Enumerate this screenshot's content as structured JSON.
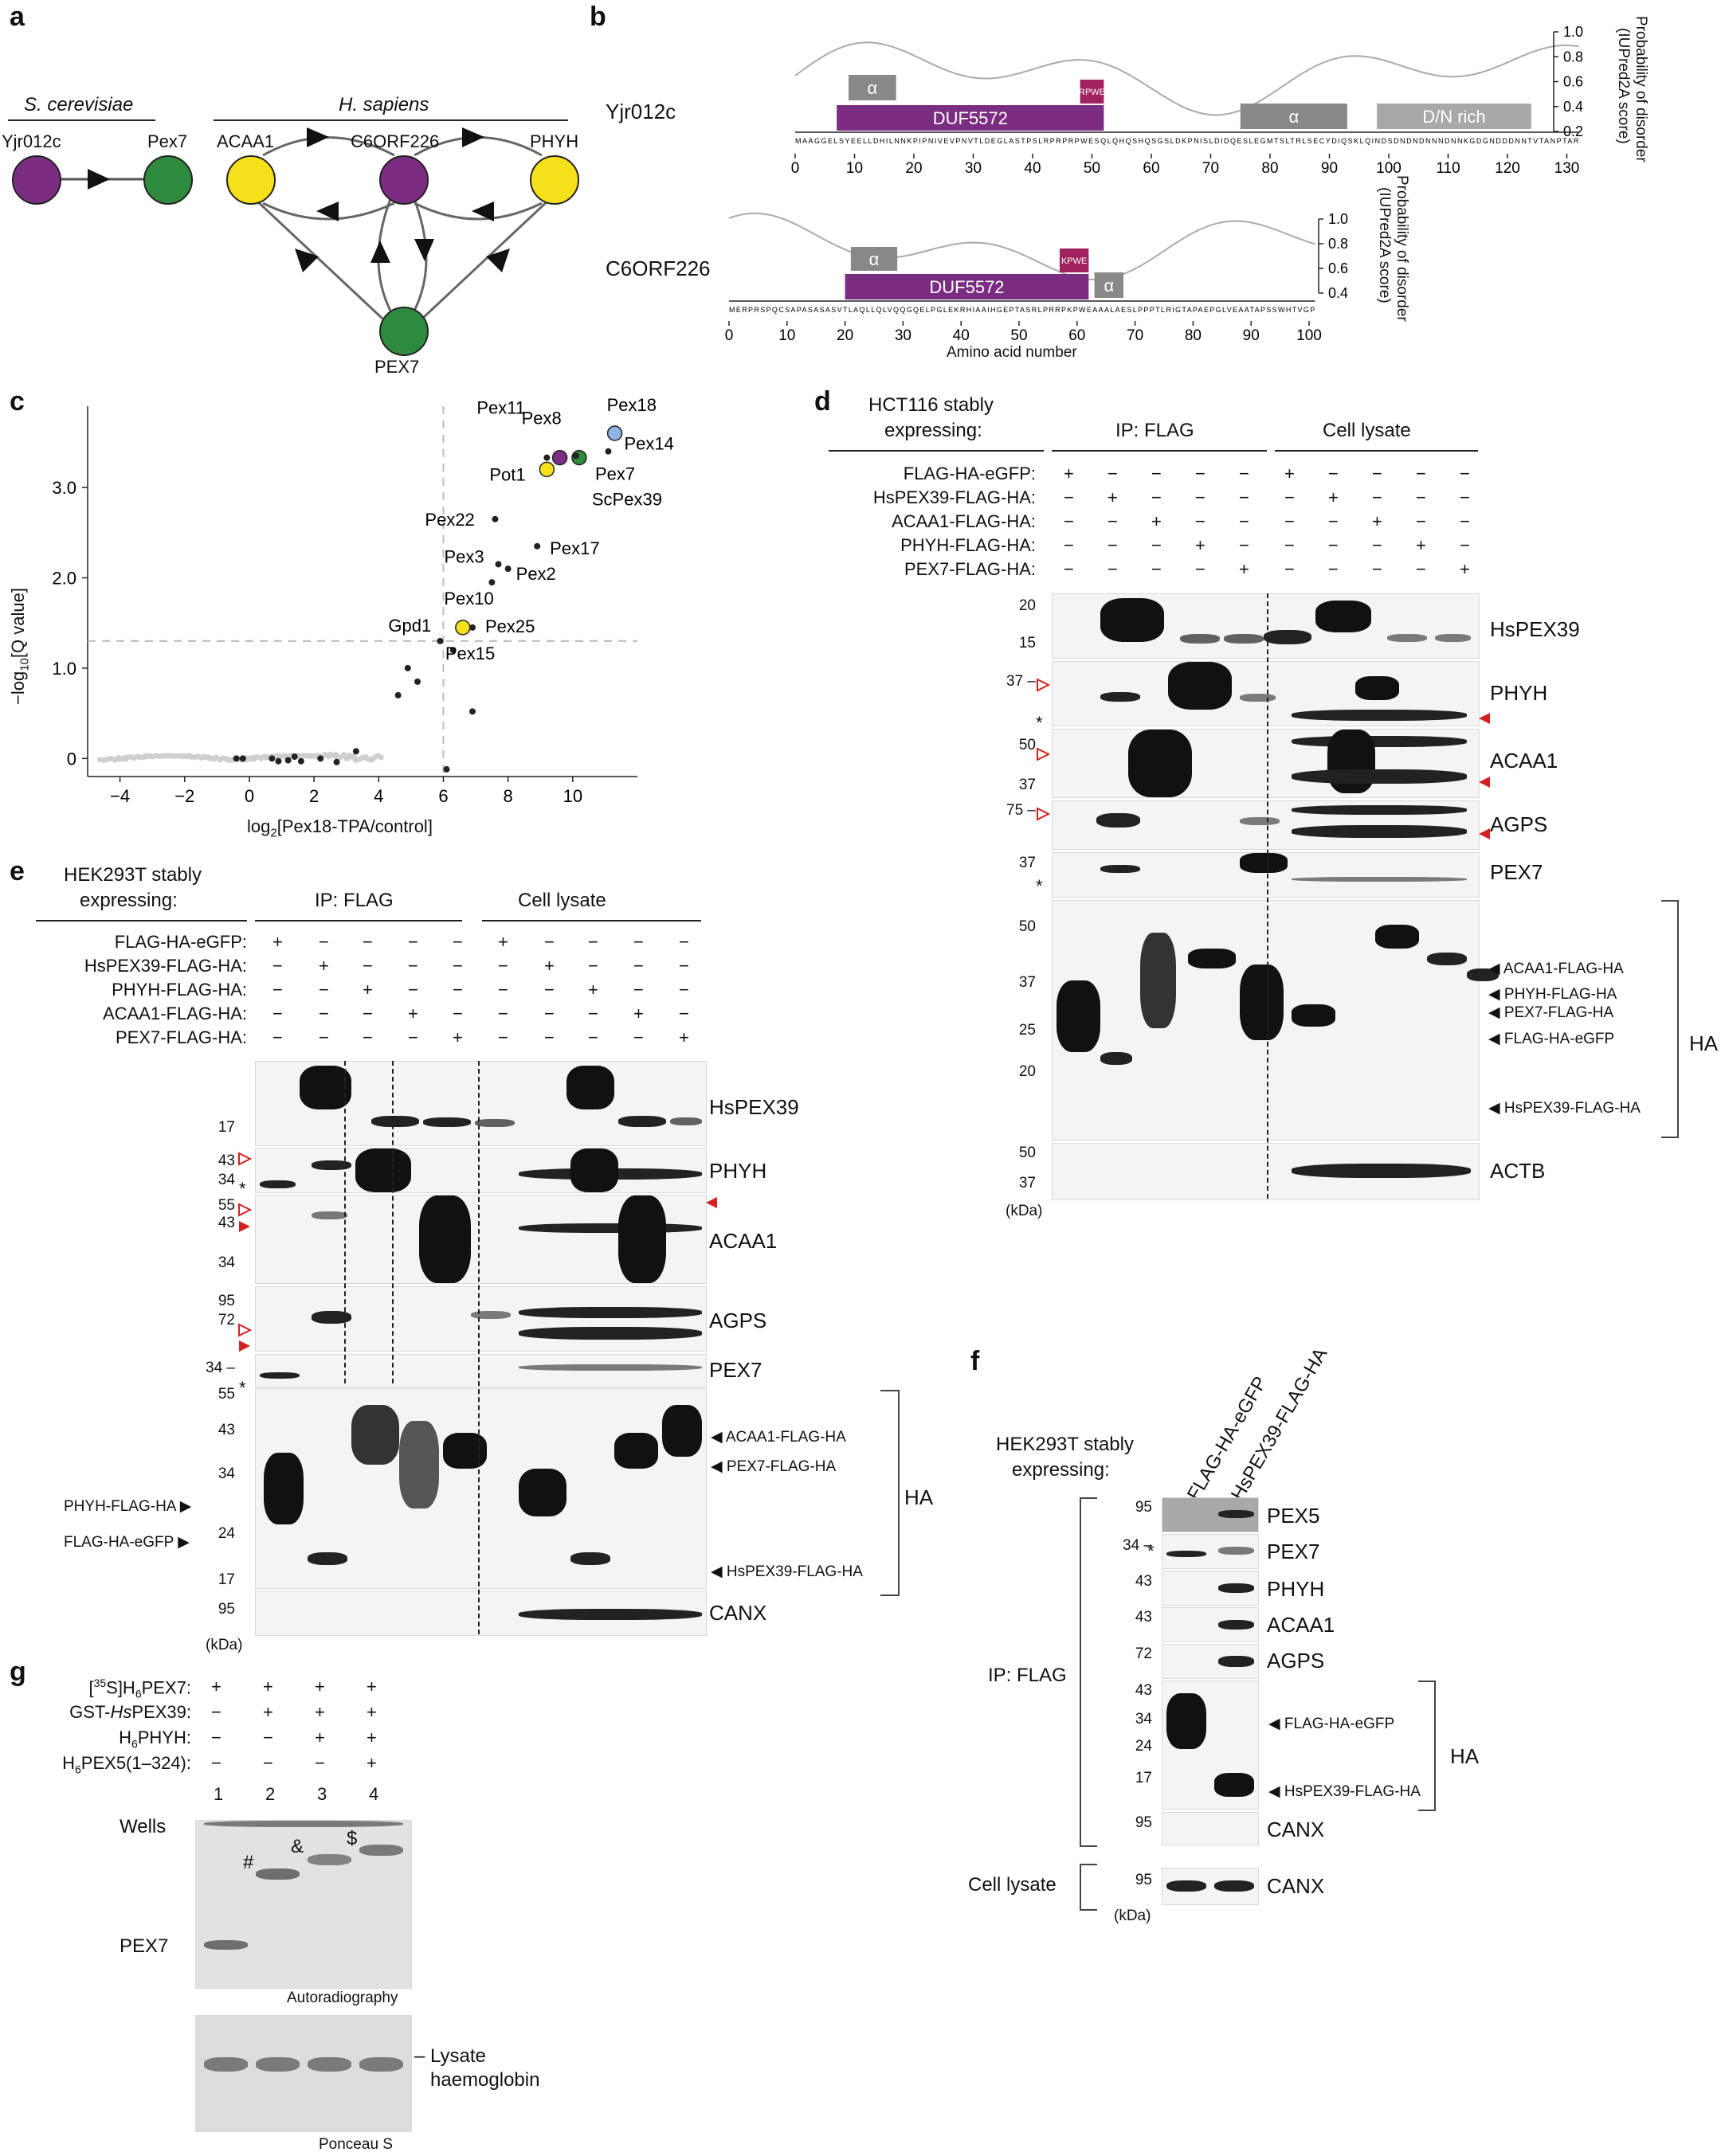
{
  "panel_a": {
    "letter": "a",
    "yeast_title": "S. cerevisiae",
    "human_title": "H. sapiens",
    "yeast_nodes": [
      "Yjr012c",
      "Pex7"
    ],
    "human_nodes": [
      "ACAA1",
      "C6ORF226",
      "PHYH",
      "PEX7"
    ],
    "colors": {
      "purple": "#7b2d82",
      "green": "#2e8b3e",
      "yellow": "#f5e11a"
    }
  },
  "panel_b": {
    "letter": "b",
    "proteins": [
      {
        "name": "Yjr012c",
        "domains": [
          {
            "label": "DUF5572",
            "start": 7,
            "end": 52,
            "color": "#7b2d82"
          },
          {
            "label": "RPWE",
            "start": 48,
            "end": 52,
            "color": "#a0235f"
          },
          {
            "label": "α",
            "start": 9,
            "end": 17,
            "color": "#888888"
          },
          {
            "label": "α",
            "start": 75,
            "end": 93,
            "color": "#888888"
          },
          {
            "label": "D/N rich",
            "start": 98,
            "end": 124,
            "color": "#a8a8a8"
          }
        ],
        "sequence": "MAAGGELSYEELLDHILNNKPIPNIVEVPNVTLDEGLASTPSLRPRPRPWESQLQHQSHQSGSLDKPNISLDIDQESLEGMTSLTRLSECYDIQSKLQINDSDNDNDNNNDNNKGDGNDDDNNTVTANPTAR",
        "axis_ticks": [
          "0",
          "10",
          "20",
          "30",
          "40",
          "50",
          "60",
          "70",
          "80",
          "90",
          "100",
          "110",
          "120",
          "130"
        ],
        "disorder_ticks": [
          "1.0",
          "0.8",
          "0.6",
          "0.4",
          "0.2"
        ]
      },
      {
        "name": "C6ORF226",
        "domains": [
          {
            "label": "DUF5572",
            "start": 20,
            "end": 62,
            "color": "#7b2d82"
          },
          {
            "label": "KPWE",
            "start": 57,
            "end": 62,
            "color": "#a0235f"
          },
          {
            "label": "α",
            "start": 21,
            "end": 29,
            "color": "#888888"
          },
          {
            "label": "α",
            "start": 63,
            "end": 68,
            "color": "#888888"
          }
        ],
        "sequence": "MERPRSPQCSAPASASASVTLAQLLQLVQQGQELPGLEKRHIAAIHGEPTASRLPRRPKPWEAAALAESLPPPTLRIGTAPAEPGLVEAATAPSSWHTVGP",
        "axis_ticks": [
          "0",
          "10",
          "20",
          "30",
          "40",
          "50",
          "60",
          "70",
          "80",
          "90",
          "100"
        ],
        "disorder_ticks": [
          "1.0",
          "0.8",
          "0.6",
          "0.4"
        ]
      }
    ],
    "disorder_label": "Probability of disorder",
    "disorder_sublabel": "(IUPred2A score)",
    "xlabel": "Amino acid number"
  },
  "panel_c": {
    "letter": "c",
    "ylabel_prefix": "−log",
    "ylabel_sub": "10",
    "ylabel_suffix": "[Q value]",
    "xlabel_prefix": "log",
    "xlabel_sub": "2",
    "xlabel_suffix": "[Pex18-TPA/control]"
  },
  "chart_data": {
    "type": "scatter",
    "xlim": [
      -5,
      12
    ],
    "ylim": [
      -0.2,
      3.9
    ],
    "x_ticks": [
      -4,
      -2,
      0,
      2,
      4,
      6,
      8,
      10
    ],
    "y_ticks": [
      0,
      1.0,
      2.0,
      3.0
    ],
    "x_tick_labels": [
      "−4",
      "−2",
      "0",
      "2",
      "4",
      "6",
      "8",
      "10"
    ],
    "y_tick_labels": [
      "0",
      "1.0",
      "2.0",
      "3.0"
    ],
    "threshold_x": 6.0,
    "threshold_y": 1.3,
    "labeled_points": [
      {
        "label": "Pex18",
        "x": 11.3,
        "y": 3.6,
        "color": "#8fb4e3"
      },
      {
        "label": "Pex14",
        "x": 11.1,
        "y": 3.4,
        "color": "#222222"
      },
      {
        "label": "Pex8",
        "x": 9.6,
        "y": 3.33,
        "color": "#7b2d82"
      },
      {
        "label": "Pex11",
        "x": 9.2,
        "y": 3.33,
        "color": "#222222"
      },
      {
        "label": "Pot1",
        "x": 9.2,
        "y": 3.2,
        "color": "#f5e11a"
      },
      {
        "label": "Pex7",
        "x": 10.2,
        "y": 3.33,
        "color": "#2e8b3e"
      },
      {
        "label": "ScPex39",
        "x": 10.1,
        "y": 3.35,
        "color": "#222222"
      },
      {
        "label": "Pex22",
        "x": 7.6,
        "y": 2.65,
        "color": "#222222"
      },
      {
        "label": "Pex17",
        "x": 8.9,
        "y": 2.35,
        "color": "#222222"
      },
      {
        "label": "Pex3",
        "x": 7.7,
        "y": 2.15,
        "color": "#222222"
      },
      {
        "label": "Pex2",
        "x": 8.0,
        "y": 2.1,
        "color": "#222222"
      },
      {
        "label": "Pex10",
        "x": 7.5,
        "y": 1.95,
        "color": "#222222"
      },
      {
        "label": "Gpd1",
        "x": 5.9,
        "y": 1.3,
        "color": "#222222"
      },
      {
        "label": "Pex25",
        "x": 6.9,
        "y": 1.45,
        "color": "#222222"
      },
      {
        "label": "Pex15",
        "x": 6.6,
        "y": 1.45,
        "color": "#f5e11a"
      }
    ],
    "other_points": [
      {
        "x": 4.9,
        "y": 1.0
      },
      {
        "x": 5.2,
        "y": 0.85
      },
      {
        "x": 6.3,
        "y": 1.2
      },
      {
        "x": 4.6,
        "y": 0.7
      },
      {
        "x": 6.9,
        "y": 0.52
      },
      {
        "x": 6.1,
        "y": -0.12
      },
      {
        "x": -0.4,
        "y": 0.0
      },
      {
        "x": -0.2,
        "y": 0.0
      },
      {
        "x": 0.7,
        "y": 0.0
      },
      {
        "x": 0.9,
        "y": -0.03
      },
      {
        "x": 1.2,
        "y": -0.02
      },
      {
        "x": 1.4,
        "y": 0.02
      },
      {
        "x": 1.6,
        "y": -0.03
      },
      {
        "x": 2.2,
        "y": 0.0
      },
      {
        "x": 2.7,
        "y": -0.04
      },
      {
        "x": 3.3,
        "y": 0.08
      }
    ]
  },
  "panel_d": {
    "letter": "d",
    "cell_line": "HCT116 stably",
    "cell_line2": "expressing:",
    "group_ip": "IP: FLAG",
    "group_lysate": "Cell lysate",
    "rows": [
      {
        "label": "FLAG-HA-eGFP:",
        "signs": [
          "+",
          "−",
          "−",
          "−",
          "−",
          "+",
          "−",
          "−",
          "−",
          "−"
        ]
      },
      {
        "label": "HsPEX39-FLAG-HA:",
        "signs": [
          "−",
          "+",
          "−",
          "−",
          "−",
          "−",
          "+",
          "−",
          "−",
          "−"
        ]
      },
      {
        "label": "ACAA1-FLAG-HA:",
        "signs": [
          "−",
          "−",
          "+",
          "−",
          "−",
          "−",
          "−",
          "+",
          "−",
          "−"
        ]
      },
      {
        "label": "PHYH-FLAG-HA:",
        "signs": [
          "−",
          "−",
          "−",
          "+",
          "−",
          "−",
          "−",
          "−",
          "+",
          "−"
        ]
      },
      {
        "label": "PEX7-FLAG-HA:",
        "signs": [
          "−",
          "−",
          "−",
          "−",
          "+",
          "−",
          "−",
          "−",
          "−",
          "+"
        ]
      }
    ],
    "blot_labels": [
      "HsPEX39",
      "PHYH",
      "ACAA1",
      "AGPS",
      "PEX7",
      "HA",
      "ACTB"
    ],
    "mw": [
      "20",
      "15",
      "37 –",
      "50",
      "37",
      "75 –",
      "37",
      "50",
      "37",
      "25",
      "20",
      "50",
      "37"
    ],
    "ha_arrows": [
      "ACAA1-FLAG-HA",
      "PHYH-FLAG-HA",
      "PEX7-FLAG-HA",
      "FLAG-HA-eGFP",
      "HsPEX39-FLAG-HA"
    ],
    "kda": "(kDa)",
    "asterisk": "*"
  },
  "panel_e": {
    "letter": "e",
    "cell_line": "HEK293T stably",
    "cell_line2": "expressing:",
    "group_ip": "IP: FLAG",
    "group_lysate": "Cell lysate",
    "rows": [
      {
        "label": "FLAG-HA-eGFP:",
        "signs": [
          "+",
          "−",
          "−",
          "−",
          "−",
          "+",
          "−",
          "−",
          "−",
          "−"
        ]
      },
      {
        "label": "HsPEX39-FLAG-HA:",
        "signs": [
          "−",
          "+",
          "−",
          "−",
          "−",
          "−",
          "+",
          "−",
          "−",
          "−"
        ]
      },
      {
        "label": "PHYH-FLAG-HA:",
        "signs": [
          "−",
          "−",
          "+",
          "−",
          "−",
          "−",
          "−",
          "+",
          "−",
          "−"
        ]
      },
      {
        "label": "ACAA1-FLAG-HA:",
        "signs": [
          "−",
          "−",
          "−",
          "+",
          "−",
          "−",
          "−",
          "−",
          "+",
          "−"
        ]
      },
      {
        "label": "PEX7-FLAG-HA:",
        "signs": [
          "−",
          "−",
          "−",
          "−",
          "+",
          "−",
          "−",
          "−",
          "−",
          "+"
        ]
      }
    ],
    "blot_labels": [
      "HsPEX39",
      "PHYH",
      "ACAA1",
      "AGPS",
      "PEX7",
      "HA",
      "CANX"
    ],
    "mw": [
      "17",
      "43",
      "34",
      "55",
      "43",
      "34",
      "95",
      "72",
      "34 –",
      "55",
      "43",
      "34",
      "24",
      "17",
      "95"
    ],
    "ha_left_arrows": [
      "PHYH-FLAG-HA",
      "FLAG-HA-eGFP"
    ],
    "ha_right_arrows": [
      "ACAA1-FLAG-HA",
      "PEX7-FLAG-HA",
      "HsPEX39-FLAG-HA"
    ],
    "kda": "(kDa)",
    "asterisk": "*"
  },
  "panel_f": {
    "letter": "f",
    "cell_line": "HEK293T stably",
    "cell_line2": "expressing:",
    "lanes": [
      "FLAG-HA-eGFP",
      "HsPEX39-FLAG-HA"
    ],
    "blot_labels": [
      "PEX5",
      "PEX7",
      "PHYH",
      "ACAA1",
      "AGPS",
      "HA",
      "CANX",
      "CANX"
    ],
    "mw": [
      "95",
      "34 –",
      "43",
      "43",
      "72",
      "43",
      "34",
      "24",
      "17",
      "95",
      "95"
    ],
    "ha_arrows": [
      "FLAG-HA-eGFP",
      "HsPEX39-FLAG-HA"
    ],
    "ip_label": "IP: FLAG",
    "lysate_label": "Cell lysate",
    "kda": "(kDa)",
    "asterisk": "*"
  },
  "panel_g": {
    "letter": "g",
    "rows": [
      {
        "label_pre": "[",
        "label_sup": "35",
        "label_post": "S]H",
        "label_sub": "6",
        "label_end": "PEX7:",
        "signs": [
          "+",
          "+",
          "+",
          "+"
        ]
      },
      {
        "label_pre": "GST-",
        "label_ital": "Hs",
        "label_end": "PEX39:",
        "signs": [
          "−",
          "+",
          "+",
          "+"
        ]
      },
      {
        "label_pre": "H",
        "label_sub": "6",
        "label_end": "PHYH:",
        "signs": [
          "−",
          "−",
          "+",
          "+"
        ]
      },
      {
        "label_pre": "H",
        "label_sub": "6",
        "label_end": "PEX5(1–324):",
        "signs": [
          "−",
          "−",
          "−",
          "+"
        ]
      }
    ],
    "lane_numbers": [
      "1",
      "2",
      "3",
      "4"
    ],
    "wells_label": "Wells",
    "pex7_label": "PEX7",
    "marks": [
      "#",
      "&",
      "$"
    ],
    "autorad": "Autoradiography",
    "lysate": "Lysate",
    "haemoglobin": "haemoglobin",
    "ponceau": "Ponceau S"
  }
}
